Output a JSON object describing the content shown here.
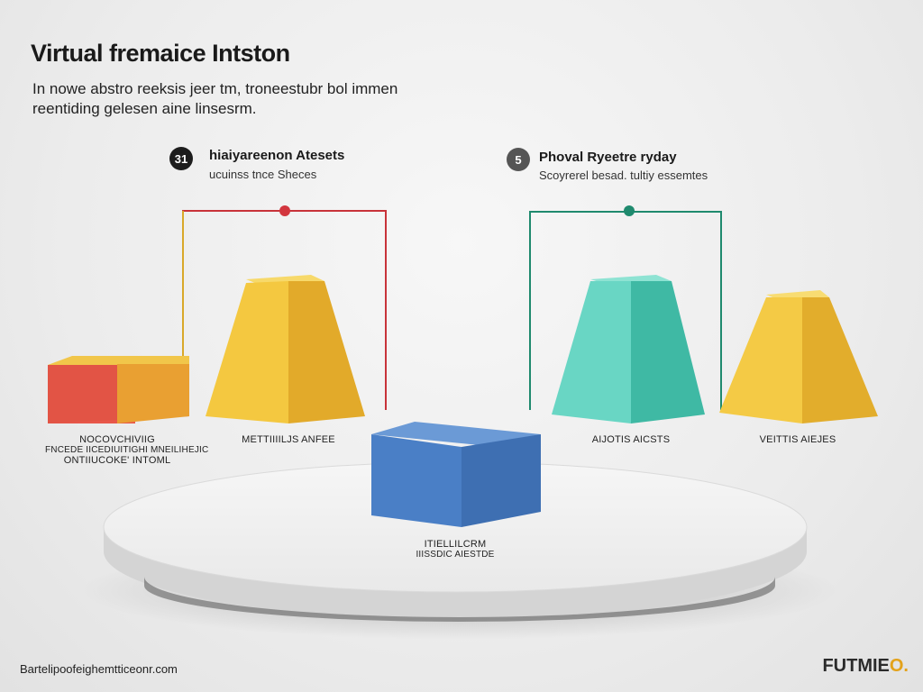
{
  "header": {
    "title": "Virtual fremaice Intston",
    "subtitle_line1": "In nowe abstro reeksis jeer tm, troneestubr bol immen",
    "subtitle_line2": "reentiding gelesen aine linsesrm."
  },
  "section_left": {
    "badge": "31",
    "heading": "hiaiyareenon Atesets",
    "subheading": "ucuinss tnce Sheces",
    "accent_color": "#c8333a"
  },
  "section_right": {
    "badge": "5",
    "heading": "Phoval Ryeetre ryday",
    "subheading": "Scoyrerel besad. tultiy essemtes",
    "accent_color": "#1f8a6e"
  },
  "labels": {
    "red_cube_line1": "NOCOVCHIVIIG",
    "red_cube_line2": "FNCEDE IICEDIUITIGHI MNEILIHEJIC",
    "red_cube_line3": "ONTIIUCOKE' INTOML",
    "yellow_pyramid": "METTIIIILJS ANFEE",
    "teal_pyramid": "AIJOTIS AICSTS",
    "yellow_pyramid_right": "VEITTIS AIEJES",
    "blue_cube_line1": "ITIELLILCRM",
    "blue_cube_line2": "IIISSDIC AIESTDE"
  },
  "footer": {
    "left": "Bartelipoofeighemtticeonr.com",
    "brand_main": "FUTMIE",
    "brand_accent": "O."
  },
  "colors": {
    "red": "#e85a48",
    "yellow": "#f2c23c",
    "teal": "#5fd0be",
    "blue": "#4d86cc",
    "dark_badge": "#1d1d1d",
    "grey_badge": "#555555"
  }
}
